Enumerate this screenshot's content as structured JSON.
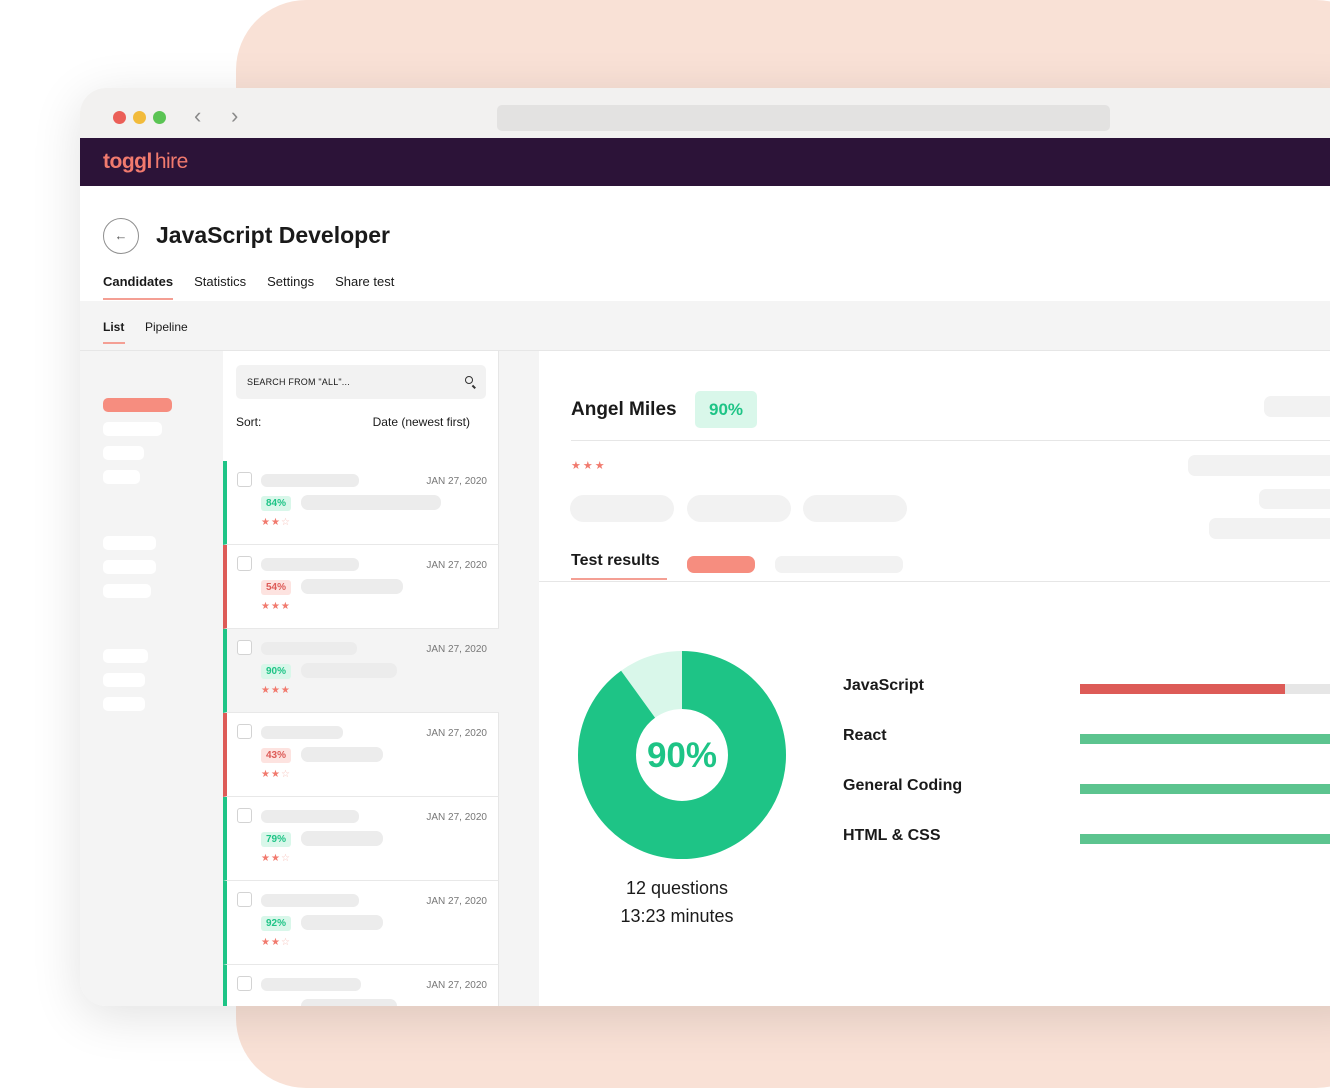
{
  "app": {
    "logo_primary": "toggl",
    "logo_secondary": "hire"
  },
  "page": {
    "title": "JavaScript Developer"
  },
  "tabs": [
    "Candidates",
    "Statistics",
    "Settings",
    "Share test"
  ],
  "subtabs": [
    "List",
    "Pipeline"
  ],
  "search": {
    "placeholder": "SEARCH FROM \"ALL\"..."
  },
  "sort": {
    "label": "Sort:",
    "value": "Date (newest first)"
  },
  "candidates": [
    {
      "score": "84%",
      "date": "JAN 27, 2020",
      "status": "green",
      "stars": 2,
      "selected": false
    },
    {
      "score": "54%",
      "date": "JAN 27, 2020",
      "status": "red",
      "stars": 3,
      "selected": false
    },
    {
      "score": "90%",
      "date": "JAN 27, 2020",
      "status": "green",
      "stars": 3,
      "selected": true
    },
    {
      "score": "43%",
      "date": "JAN 27, 2020",
      "status": "red",
      "stars": 2,
      "selected": false
    },
    {
      "score": "79%",
      "date": "JAN 27, 2020",
      "status": "green",
      "stars": 2,
      "selected": false
    },
    {
      "score": "92%",
      "date": "JAN 27, 2020",
      "status": "green",
      "stars": 2,
      "selected": false
    },
    {
      "score": "",
      "date": "JAN 27, 2020",
      "status": "green",
      "stars": 0,
      "selected": false
    }
  ],
  "detail": {
    "name": "Angel Miles",
    "score": "90%",
    "score_value": 0.9,
    "stars": 3,
    "tab_label": "Test results",
    "questions": "12 questions",
    "duration": "13:23 minutes",
    "skills": [
      {
        "name": "JavaScript",
        "fill": 0.79,
        "color": "#dd5b57"
      },
      {
        "name": "React",
        "fill": 1.0,
        "color": "#5cc48f"
      },
      {
        "name": "General Coding",
        "fill": 1.0,
        "color": "#5cc48f"
      },
      {
        "name": "HTML & CSS",
        "fill": 1.0,
        "color": "#5cc48f"
      }
    ]
  },
  "colors": {
    "brand_dark": "#2c1338",
    "brand_coral": "#f17a6e",
    "success": "#1ec486",
    "danger": "#dd5b57"
  }
}
